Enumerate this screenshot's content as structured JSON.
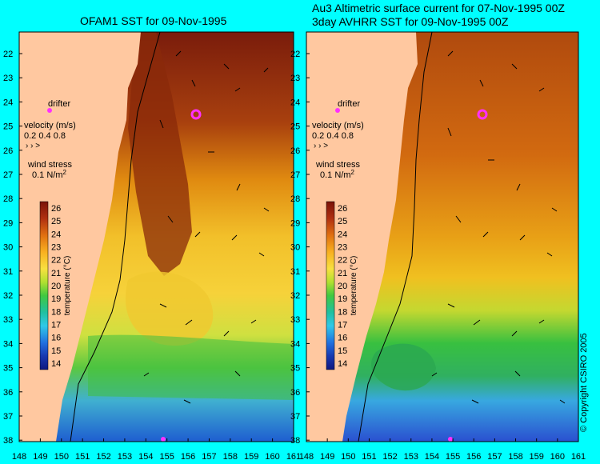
{
  "panels": [
    {
      "title_lines": [
        "OFAM1 SST for 09-Nov-1995"
      ],
      "legend": {
        "drifter": "drifter",
        "velocity_label": "velocity (m/s)",
        "velocity_values": "0.2 0.4 0.8",
        "wind_label": "wind stress",
        "wind_value": "0.1 N/m",
        "wind_superscript": "2"
      }
    },
    {
      "title_lines": [
        "Au3 Altimetric surface current for 07-Nov-1995 00Z",
        "3day AVHRR SST for 09-Nov-1995 00Z"
      ],
      "legend": {
        "drifter": "drifter",
        "velocity_label": "velocity (m/s)",
        "velocity_values": "0.2 0.4 0.8",
        "wind_label": "wind stress",
        "wind_value": "0.1 N/m",
        "wind_superscript": "2"
      }
    }
  ],
  "latitude_ticks": [
    "22",
    "23",
    "24",
    "25",
    "26",
    "27",
    "28",
    "29",
    "30",
    "31",
    "32",
    "33",
    "34",
    "35",
    "36",
    "37",
    "38"
  ],
  "longitude_ticks": [
    "148",
    "149",
    "150",
    "151",
    "152",
    "153",
    "154",
    "155",
    "156",
    "157",
    "158",
    "159",
    "160",
    "161"
  ],
  "colorbar": {
    "label": "temperature (°C)",
    "ticks": [
      "26",
      "25",
      "24",
      "23",
      "22",
      "21",
      "20",
      "19",
      "18",
      "17",
      "16",
      "15",
      "14"
    ]
  },
  "copyright": "© Copyright CSIRO 2005",
  "colors": {
    "background": "#00ffff",
    "land": "#ffc8a0",
    "warm": "#a03010",
    "cool": "#1060d0"
  }
}
